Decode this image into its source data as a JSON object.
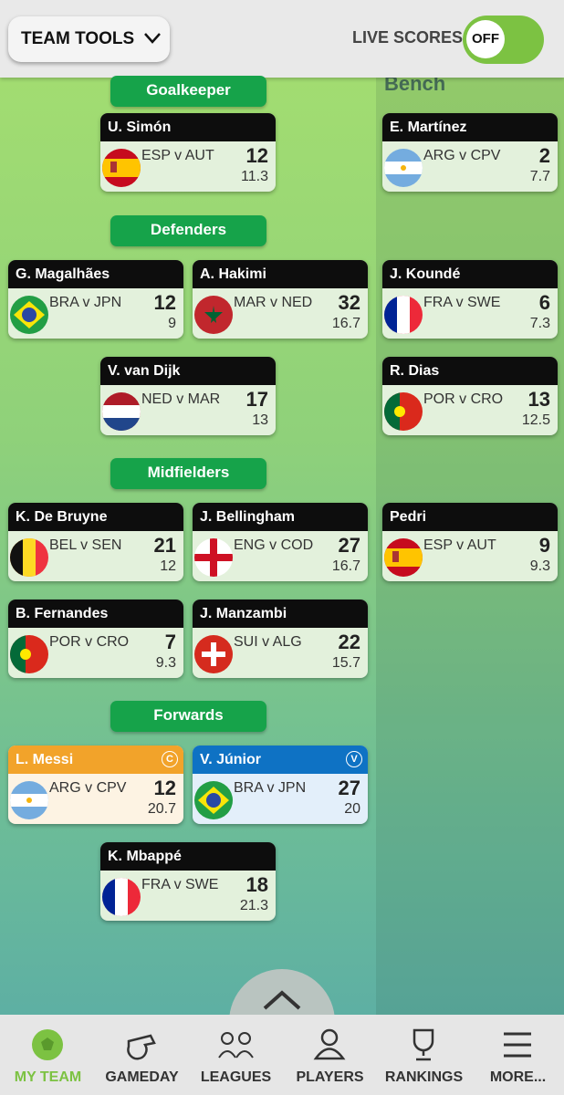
{
  "header": {
    "team_tools": "TEAM TOOLS",
    "live_scores": "LIVE SCORES",
    "toggle": "OFF"
  },
  "sections": [
    "Goalkeeper",
    "Defenders",
    "Midfielders",
    "Forwards"
  ],
  "bench_title": "Bench",
  "players": [
    {
      "name": "U. Simón",
      "match": "ESP v AUT",
      "points": 12,
      "value": 11.3
    },
    {
      "name": "E. Martínez",
      "match": "ARG v CPV",
      "points": 2,
      "value": 7.7
    },
    {
      "name": "G. Magalhães",
      "match": "BRA v JPN",
      "points": 12,
      "value": 9
    },
    {
      "name": "A. Hakimi",
      "match": "MAR v NED",
      "points": 32,
      "value": 16.7
    },
    {
      "name": "J. Koundé",
      "match": "FRA v SWE",
      "points": 6,
      "value": 7.3
    },
    {
      "name": "V. van Dijk",
      "match": "NED v MAR",
      "points": 17,
      "value": 13
    },
    {
      "name": "R. Dias",
      "match": "POR v CRO",
      "points": 13,
      "value": 12.5
    },
    {
      "name": "K. De Bruyne",
      "match": "BEL v SEN",
      "points": 21,
      "value": 12
    },
    {
      "name": "J. Bellingham",
      "match": "ENG v COD",
      "points": 27,
      "value": 16.7
    },
    {
      "name": "Pedri",
      "match": "ESP v AUT",
      "points": 9,
      "value": 9.3
    },
    {
      "name": "B. Fernandes",
      "match": "POR v CRO",
      "points": 7,
      "value": 9.3
    },
    {
      "name": "J. Manzambi",
      "match": "SUI v ALG",
      "points": 22,
      "value": 15.7
    },
    {
      "name": "L. Messi",
      "match": "ARG v CPV",
      "points": 12,
      "value": 20.7,
      "badge": "C"
    },
    {
      "name": "V. Júnior",
      "match": "BRA v JPN",
      "points": 27,
      "value": 20,
      "badge": "V"
    },
    {
      "name": "K. Mbappé",
      "match": "FRA v SWE",
      "points": 18,
      "value": 21.3
    }
  ],
  "nav": [
    "MY TEAM",
    "GAMEDAY",
    "LEAGUES",
    "PLAYERS",
    "RANKINGS",
    "MORE..."
  ]
}
